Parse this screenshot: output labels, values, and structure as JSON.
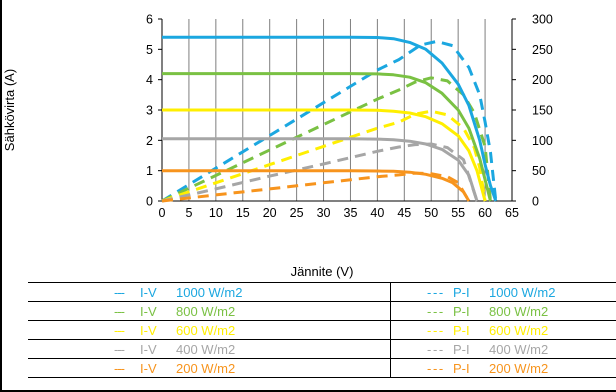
{
  "colors": {
    "1000": "#1ba7e0",
    "800": "#7ac143",
    "600": "#ffef00",
    "400": "#a6a6a6",
    "200": "#f7941d",
    "grid": "#7f7f7f"
  },
  "chart_data": {
    "type": "line",
    "xlabel": "Jännite (V)",
    "ylabel": "Sähkövirta (A)",
    "xlim": [
      0,
      65
    ],
    "ylim_left": [
      0,
      6
    ],
    "ylim_right": [
      0,
      300
    ],
    "x_ticks": [
      "0",
      "5",
      "10",
      "15",
      "20",
      "25",
      "30",
      "35",
      "40",
      "45",
      "50",
      "55",
      "60",
      "65"
    ],
    "y_ticks_left": [
      "0",
      "1",
      "2",
      "3",
      "4",
      "5",
      "6"
    ],
    "y_ticks_right": [
      "0",
      "50",
      "100",
      "150",
      "200",
      "250",
      "300"
    ],
    "grid": "vertical",
    "series": [
      {
        "name": "1000 W/m2",
        "key": "1000",
        "kind": "I-V",
        "x": [
          0,
          35,
          40,
          43,
          46,
          49,
          52,
          55,
          57,
          59,
          60,
          61,
          62
        ],
        "y": [
          5.4,
          5.4,
          5.39,
          5.35,
          5.23,
          5.0,
          4.55,
          3.85,
          3.15,
          2.0,
          1.2,
          0.5,
          0.0
        ]
      },
      {
        "name": "800 W/m2",
        "key": "800",
        "kind": "I-V",
        "x": [
          0,
          35,
          40,
          43,
          46,
          49,
          52,
          55,
          57,
          59,
          60,
          61
        ],
        "y": [
          4.2,
          4.2,
          4.19,
          4.16,
          4.08,
          3.9,
          3.55,
          3.0,
          2.4,
          1.4,
          0.7,
          0.0
        ]
      },
      {
        "name": "600 W/m2",
        "key": "600",
        "kind": "I-V",
        "x": [
          0,
          35,
          40,
          43,
          46,
          49,
          52,
          55,
          57,
          58.5,
          60
        ],
        "y": [
          3.0,
          3.0,
          2.99,
          2.96,
          2.9,
          2.78,
          2.55,
          2.15,
          1.65,
          1.0,
          0.0
        ]
      },
      {
        "name": "400 W/m2",
        "key": "400",
        "kind": "I-V",
        "x": [
          0,
          35,
          40,
          43,
          46,
          49,
          52,
          55,
          57,
          58.5
        ],
        "y": [
          2.05,
          2.05,
          2.04,
          2.02,
          1.97,
          1.88,
          1.7,
          1.35,
          0.85,
          0.0
        ]
      },
      {
        "name": "200 W/m2",
        "key": "200",
        "kind": "I-V",
        "x": [
          0,
          35,
          40,
          43,
          46,
          49,
          52,
          54,
          56,
          57
        ],
        "y": [
          1.0,
          1.0,
          0.99,
          0.98,
          0.95,
          0.88,
          0.75,
          0.6,
          0.3,
          0.0
        ]
      },
      {
        "name": "1000 W/m2",
        "key": "1000",
        "kind": "P-I",
        "x": [
          0,
          10,
          20,
          30,
          40,
          44,
          48,
          51,
          54,
          57,
          59,
          60,
          61,
          62
        ],
        "y": [
          0,
          54,
          108,
          162,
          216,
          233,
          257,
          263,
          256,
          220,
          175,
          130,
          80,
          0
        ]
      },
      {
        "name": "800 W/m2",
        "key": "800",
        "kind": "P-I",
        "x": [
          0,
          10,
          20,
          30,
          40,
          44,
          47,
          50,
          53,
          56,
          58,
          60,
          61
        ],
        "y": [
          0,
          42,
          84,
          126,
          168,
          183,
          196,
          203,
          198,
          175,
          145,
          90,
          0
        ]
      },
      {
        "name": "600 W/m2",
        "key": "600",
        "kind": "P-I",
        "x": [
          0,
          10,
          20,
          30,
          40,
          44,
          47,
          50,
          53,
          56,
          58,
          59,
          60
        ],
        "y": [
          0,
          30,
          60,
          90,
          120,
          130,
          143,
          148,
          142,
          120,
          88,
          55,
          0
        ]
      },
      {
        "name": "400 W/m2",
        "key": "400",
        "kind": "P-I",
        "x": [
          0,
          10,
          20,
          30,
          40,
          44,
          47,
          50,
          53,
          56,
          58.5
        ],
        "y": [
          0,
          20,
          41,
          61,
          82,
          89,
          93,
          94,
          88,
          68,
          0
        ]
      },
      {
        "name": "200 W/m2",
        "key": "200",
        "kind": "P-I",
        "x": [
          0,
          10,
          20,
          30,
          40,
          44,
          47,
          50,
          53,
          55,
          57
        ],
        "y": [
          0,
          10,
          20,
          30,
          40,
          43,
          46,
          45,
          40,
          30,
          0
        ]
      }
    ]
  },
  "legend": {
    "left": [
      {
        "dash": "---",
        "label": "I-V",
        "irr": "1000 W/m2",
        "key": "1000"
      },
      {
        "dash": "---",
        "label": "I-V",
        "irr": "800 W/m2",
        "key": "800"
      },
      {
        "dash": "---",
        "label": "I-V",
        "irr": "600 W/m2",
        "key": "600"
      },
      {
        "dash": "---",
        "label": "I-V",
        "irr": "400 W/m2",
        "key": "400"
      },
      {
        "dash": "---",
        "label": "I-V",
        "irr": "200 W/m2",
        "key": "200"
      }
    ],
    "right": [
      {
        "dash": "- - -",
        "label": "P-I",
        "irr": "1000 W/m2",
        "key": "1000"
      },
      {
        "dash": "- - -",
        "label": "P-I",
        "irr": "800 W/m2",
        "key": "800"
      },
      {
        "dash": "- - -",
        "label": "P-I",
        "irr": "600 W/m2",
        "key": "600"
      },
      {
        "dash": "- - -",
        "label": "P-I",
        "irr": "400 W/m2",
        "key": "400"
      },
      {
        "dash": "- - -",
        "label": "P-I",
        "irr": "200 W/m2",
        "key": "200"
      }
    ]
  }
}
